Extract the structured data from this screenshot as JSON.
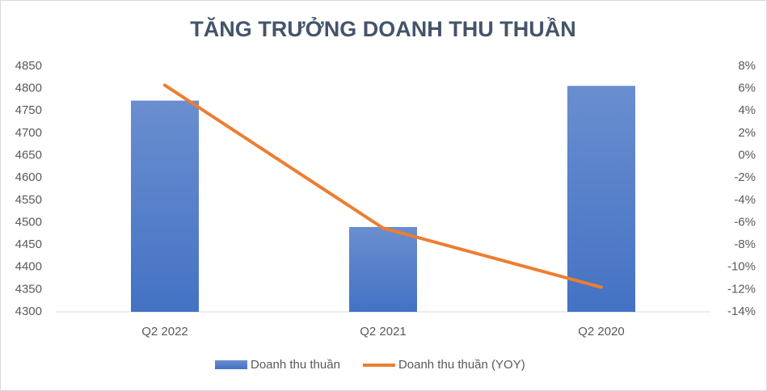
{
  "chart_data": {
    "type": "bar-line",
    "title": "TĂNG TRƯỞNG DOANH THU THUẦN",
    "categories": [
      "Q2 2022",
      "Q2 2021",
      "Q2 2020"
    ],
    "series": [
      {
        "name": "Doanh thu thuần",
        "type": "bar",
        "color": "#4472c4",
        "values": [
          4773,
          4490,
          4806
        ]
      },
      {
        "name": "Doanh thu thuần (YOY)",
        "type": "line",
        "color": "#ed7d31",
        "axis": "y2",
        "values": [
          6.3,
          -6.5,
          -11.8
        ]
      }
    ],
    "ylim": [
      4300,
      4850
    ],
    "yticks": [
      4300,
      4350,
      4400,
      4450,
      4500,
      4550,
      4600,
      4650,
      4700,
      4750,
      4800,
      4850
    ],
    "y2lim": [
      -14,
      8
    ],
    "y2ticks": [
      {
        "value": -14,
        "label": "-14%"
      },
      {
        "value": -12,
        "label": "-12%"
      },
      {
        "value": -10,
        "label": "-10%"
      },
      {
        "value": -8,
        "label": "-8%"
      },
      {
        "value": -6,
        "label": "-6%"
      },
      {
        "value": -4,
        "label": "-4%"
      },
      {
        "value": -2,
        "label": "-2%"
      },
      {
        "value": 0,
        "label": "0%"
      },
      {
        "value": 2,
        "label": "2%"
      },
      {
        "value": 4,
        "label": "4%"
      },
      {
        "value": 6,
        "label": "6%"
      },
      {
        "value": 8,
        "label": "8%"
      }
    ],
    "legend": "bottom"
  }
}
